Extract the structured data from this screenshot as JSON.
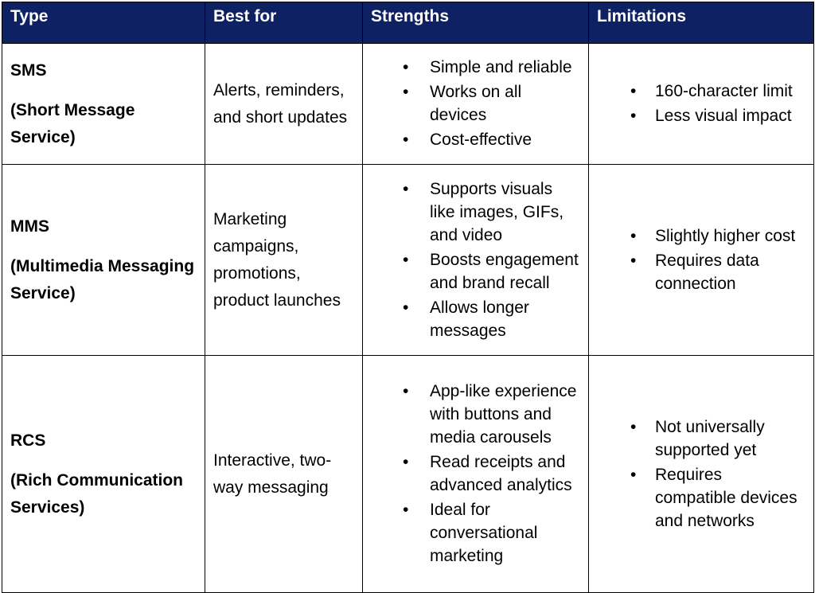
{
  "table": {
    "header": [
      "Type",
      "Best for",
      "Strengths",
      "Limitations"
    ],
    "rows": [
      {
        "type": "SMS",
        "type_full": "(Short Message Service)",
        "best_for": "Alerts, reminders, and short updates",
        "strengths": [
          "Simple and reliable",
          "Works on all devices",
          "Cost-effective"
        ],
        "limitations": [
          "160-character limit",
          "Less visual impact"
        ]
      },
      {
        "type": "MMS",
        "type_full": "(Multimedia Messaging Service)",
        "best_for": "Marketing campaigns, promotions, product launches",
        "strengths": [
          "Supports visuals like images, GIFs, and video",
          "Boosts engagement and brand recall",
          "Allows longer messages"
        ],
        "limitations": [
          "Slightly higher cost",
          "Requires data connection"
        ]
      },
      {
        "type": "RCS",
        "type_full": "(Rich Communication Services)",
        "best_for": "Interactive, two-way messaging",
        "strengths": [
          "App-like experience with buttons and media carousels",
          "Read receipts and advanced analytics",
          "Ideal for conversational marketing"
        ],
        "limitations": [
          "Not universally supported yet",
          "Requires compatible devices and networks"
        ]
      }
    ]
  }
}
